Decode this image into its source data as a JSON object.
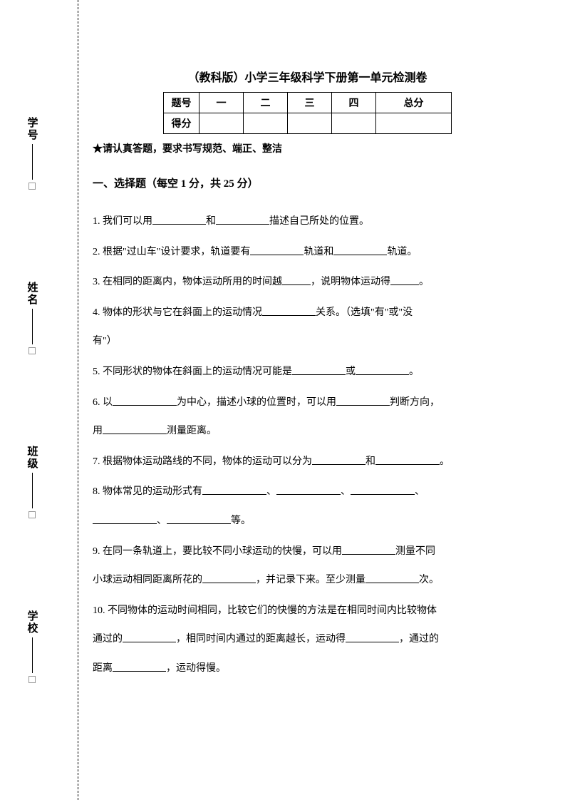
{
  "binding": {
    "labels": [
      "学校",
      "班级",
      "姓名",
      "学号"
    ]
  },
  "title": "（教科版）小学三年级科学下册第一单元检测卷",
  "score_table": {
    "row1": [
      "题号",
      "一",
      "二",
      "三",
      "四",
      "总分"
    ],
    "row2_label": "得分"
  },
  "instruction": "★请认真答题，要求书写规范、端正、整洁",
  "section1": {
    "title": "一、选择题（每空 1 分，共 25 分）",
    "q1_a": "1. 我们可以用",
    "q1_b": "和",
    "q1_c": "描述自己所处的位置。",
    "q2_a": "2. 根据\"过山车\"设计要求，轨道要有",
    "q2_b": "轨道和",
    "q2_c": "轨道。",
    "q3_a": "3. 在相同的距离内，物体运动所用的时间越",
    "q3_b": "，说明物体运动得",
    "q3_c": "。",
    "q4_a": "4. 物体的形状与它在斜面上的运动情况",
    "q4_b": "关系。（选填\"有\"或\"没",
    "q4_c": "有\"）",
    "q5_a": "5. 不同形状的物体在斜面上的运动情况可能是",
    "q5_b": "或",
    "q5_c": "。",
    "q6_a": "6. 以",
    "q6_b": "为中心，描述小球的位置时，可以用",
    "q6_c": "判断方向，",
    "q6_d": "用",
    "q6_e": "测量距离。",
    "q7_a": "7. 根据物体运动路线的不同，物体的运动可以分为",
    "q7_b": "和",
    "q7_c": "。",
    "q8_a": "8. 物体常见的运动形式有",
    "q8_b": "、",
    "q8_c": "、",
    "q8_d": "、",
    "q8_e": "、",
    "q8_f": "等。",
    "q9_a": "9. 在同一条轨道上，要比较不同小球运动的快慢，可以用",
    "q9_b": "测量不同",
    "q9_c": "小球运动相同距离所花的",
    "q9_d": "，并记录下来。至少测量",
    "q9_e": "次。",
    "q10_a": "10. 不同物体的运动时间相同，比较它们的快慢的方法是在相同时间内比较物体",
    "q10_b": "通过的",
    "q10_c": "，相同时间内通过的距离越长，运动得",
    "q10_d": "，通过的",
    "q10_e": "距离",
    "q10_f": "，运动得慢。"
  },
  "colors": {
    "text": "#000000",
    "background": "#ffffff",
    "box_border": "#999999"
  }
}
